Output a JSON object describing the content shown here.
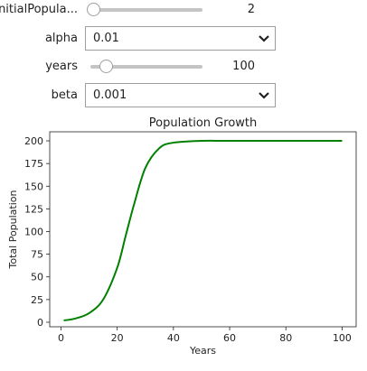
{
  "controls": {
    "initial_population": {
      "label": "initialPopula...",
      "value": "2",
      "fraction": 0.0
    },
    "alpha": {
      "label": "alpha",
      "selected": "0.01"
    },
    "years": {
      "label": "years",
      "value": "100",
      "fraction": 0.11
    },
    "beta": {
      "label": "beta",
      "selected": "0.001"
    }
  },
  "icons": {
    "dropdown_chevron": "chevron-down-icon"
  },
  "chart_data": {
    "type": "line",
    "title": "Population Growth",
    "xlabel": "Years",
    "ylabel": "Total Population",
    "xlim": [
      -4,
      105
    ],
    "ylim": [
      -5,
      210
    ],
    "xticks": [
      0,
      20,
      40,
      60,
      80,
      100
    ],
    "yticks": [
      0,
      25,
      50,
      75,
      100,
      125,
      150,
      175,
      200
    ],
    "grid": false,
    "series": [
      {
        "color": "#008000",
        "x": [
          1,
          5,
          10,
          15,
          20,
          23,
          26,
          30,
          35,
          40,
          50,
          60,
          80,
          100
        ],
        "y": [
          2,
          4,
          10,
          25,
          60,
          95,
          130,
          170,
          192,
          198,
          200,
          200,
          200,
          200
        ]
      }
    ]
  }
}
